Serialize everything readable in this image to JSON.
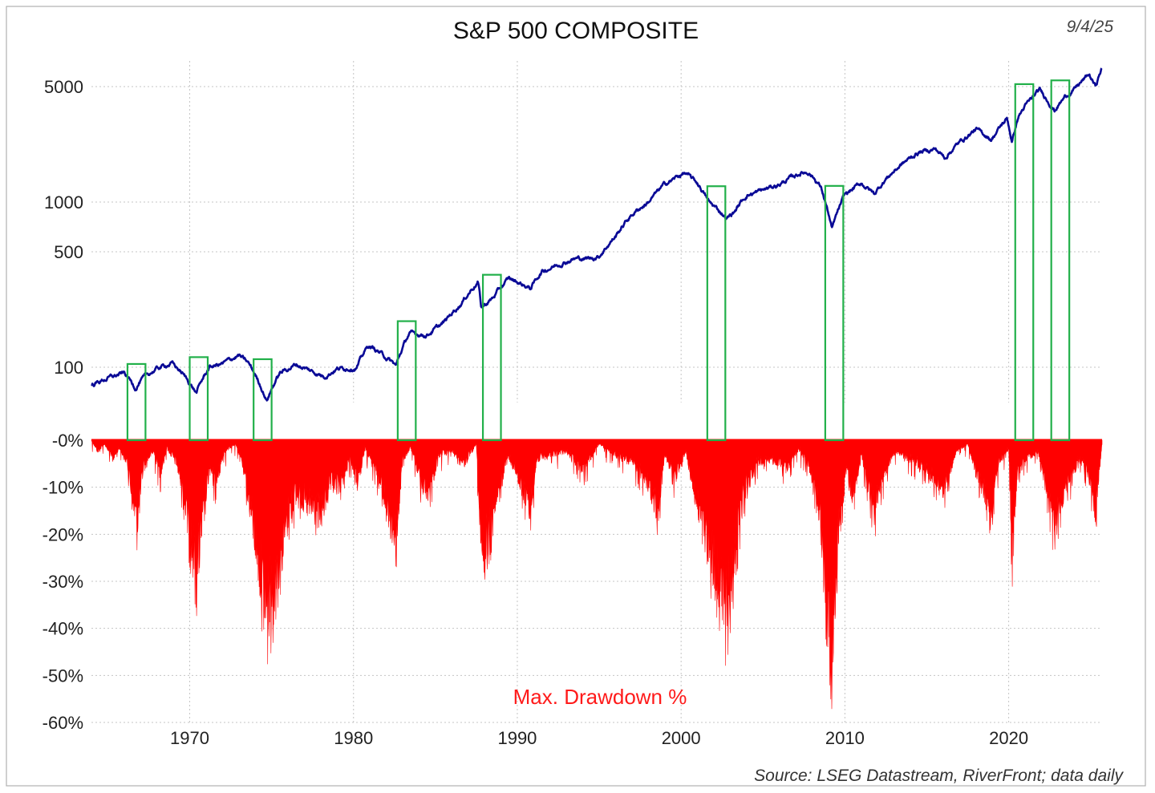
{
  "chart_data": {
    "type": "line",
    "title": "S&P 500 COMPOSITE",
    "date": "9/4/25",
    "source": "Source: LSEG Datastream, RiverFront; data daily",
    "x_ticks": [
      "1970",
      "1980",
      "1990",
      "2000",
      "2010",
      "2020"
    ],
    "x_range": [
      1964.0,
      2025.7
    ],
    "price_axis": {
      "scale": "log",
      "ticks": [
        {
          "value": 100,
          "label": "100"
        },
        {
          "value": 500,
          "label": "500"
        },
        {
          "value": 1000,
          "label": "1000"
        },
        {
          "value": 5000,
          "label": "5000"
        }
      ]
    },
    "price_series": {
      "color": "#0a0a96",
      "points": [
        [
          1964.0,
          78
        ],
        [
          1965.0,
          86
        ],
        [
          1966.0,
          92
        ],
        [
          1966.7,
          75
        ],
        [
          1967.0,
          83
        ],
        [
          1968.0,
          98
        ],
        [
          1968.9,
          106
        ],
        [
          1969.5,
          93
        ],
        [
          1970.4,
          70
        ],
        [
          1971.2,
          100
        ],
        [
          1972.0,
          105
        ],
        [
          1973.0,
          118
        ],
        [
          1973.6,
          105
        ],
        [
          1974.7,
          63
        ],
        [
          1975.5,
          92
        ],
        [
          1976.5,
          104
        ],
        [
          1977.5,
          94
        ],
        [
          1978.2,
          88
        ],
        [
          1979.0,
          98
        ],
        [
          1980.2,
          100
        ],
        [
          1980.9,
          135
        ],
        [
          1981.5,
          125
        ],
        [
          1982.6,
          102
        ],
        [
          1983.4,
          160
        ],
        [
          1984.5,
          157
        ],
        [
          1985.5,
          185
        ],
        [
          1986.6,
          245
        ],
        [
          1987.6,
          330
        ],
        [
          1987.8,
          228
        ],
        [
          1988.5,
          262
        ],
        [
          1989.5,
          345
        ],
        [
          1990.8,
          300
        ],
        [
          1991.5,
          380
        ],
        [
          1992.5,
          420
        ],
        [
          1993.5,
          455
        ],
        [
          1994.5,
          455
        ],
        [
          1995.0,
          470
        ],
        [
          1996.0,
          620
        ],
        [
          1997.0,
          840
        ],
        [
          1998.0,
          1000
        ],
        [
          1999.0,
          1280
        ],
        [
          2000.2,
          1500
        ],
        [
          2001.0,
          1300
        ],
        [
          2001.7,
          1000
        ],
        [
          2002.8,
          800
        ],
        [
          2003.2,
          860
        ],
        [
          2004.0,
          1100
        ],
        [
          2005.0,
          1180
        ],
        [
          2006.0,
          1280
        ],
        [
          2007.3,
          1500
        ],
        [
          2007.8,
          1520
        ],
        [
          2008.5,
          1250
        ],
        [
          2009.2,
          680
        ],
        [
          2010.0,
          1100
        ],
        [
          2011.0,
          1300
        ],
        [
          2011.8,
          1120
        ],
        [
          2012.5,
          1380
        ],
        [
          2013.5,
          1700
        ],
        [
          2014.5,
          2000
        ],
        [
          2015.5,
          2100
        ],
        [
          2016.1,
          1860
        ],
        [
          2017.0,
          2300
        ],
        [
          2018.0,
          2750
        ],
        [
          2018.95,
          2400
        ],
        [
          2019.9,
          3200
        ],
        [
          2020.2,
          2300
        ],
        [
          2020.6,
          3300
        ],
        [
          2021.0,
          3800
        ],
        [
          2021.9,
          4750
        ],
        [
          2022.8,
          3600
        ],
        [
          2023.5,
          4400
        ],
        [
          2024.0,
          4800
        ],
        [
          2024.9,
          5900
        ],
        [
          2025.3,
          5000
        ],
        [
          2025.7,
          6500
        ]
      ]
    },
    "drawdown_axis": {
      "ticks": [
        {
          "value": 0,
          "label": "-0%"
        },
        {
          "value": -10,
          "label": "-10%"
        },
        {
          "value": -20,
          "label": "-20%"
        },
        {
          "value": -30,
          "label": "-30%"
        },
        {
          "value": -40,
          "label": "-40%"
        },
        {
          "value": -50,
          "label": "-50%"
        },
        {
          "value": -60,
          "label": "-60%"
        }
      ]
    },
    "drawdown_series": {
      "label": "Max. Drawdown %",
      "color": "#ff0000",
      "points": [
        [
          1964.0,
          0
        ],
        [
          1964.4,
          -3
        ],
        [
          1964.8,
          -1
        ],
        [
          1965.3,
          -5
        ],
        [
          1965.7,
          -2
        ],
        [
          1966.2,
          -6
        ],
        [
          1966.5,
          -16
        ],
        [
          1966.8,
          -22
        ],
        [
          1967.2,
          -6
        ],
        [
          1967.8,
          -3
        ],
        [
          1968.2,
          -9
        ],
        [
          1968.6,
          -2
        ],
        [
          1969.2,
          -6
        ],
        [
          1969.6,
          -14
        ],
        [
          1970.0,
          -25
        ],
        [
          1970.4,
          -36
        ],
        [
          1970.8,
          -22
        ],
        [
          1971.2,
          -8
        ],
        [
          1971.6,
          -12
        ],
        [
          1972.1,
          -3
        ],
        [
          1972.8,
          -1
        ],
        [
          1973.2,
          -6
        ],
        [
          1973.7,
          -18
        ],
        [
          1974.2,
          -32
        ],
        [
          1974.7,
          -48
        ],
        [
          1975.1,
          -40
        ],
        [
          1975.6,
          -30
        ],
        [
          1976.0,
          -20
        ],
        [
          1976.6,
          -14
        ],
        [
          1977.3,
          -18
        ],
        [
          1978.0,
          -20
        ],
        [
          1978.6,
          -12
        ],
        [
          1979.2,
          -12
        ],
        [
          1979.8,
          -5
        ],
        [
          1980.3,
          -12
        ],
        [
          1980.7,
          -2
        ],
        [
          1981.4,
          -8
        ],
        [
          1982.0,
          -18
        ],
        [
          1982.6,
          -27
        ],
        [
          1983.0,
          -5
        ],
        [
          1983.5,
          -2
        ],
        [
          1984.2,
          -12
        ],
        [
          1984.6,
          -14
        ],
        [
          1985.2,
          -4
        ],
        [
          1986.0,
          -3
        ],
        [
          1986.8,
          -6
        ],
        [
          1987.5,
          -1
        ],
        [
          1987.8,
          -33
        ],
        [
          1988.2,
          -26
        ],
        [
          1988.8,
          -15
        ],
        [
          1989.4,
          -4
        ],
        [
          1989.9,
          -8
        ],
        [
          1990.8,
          -19
        ],
        [
          1991.2,
          -5
        ],
        [
          1992.0,
          -4
        ],
        [
          1993.0,
          -3
        ],
        [
          1994.0,
          -8
        ],
        [
          1995.0,
          -1
        ],
        [
          1996.0,
          -4
        ],
        [
          1997.0,
          -6
        ],
        [
          1997.8,
          -10
        ],
        [
          1998.6,
          -19
        ],
        [
          1999.0,
          -4
        ],
        [
          1999.6,
          -10
        ],
        [
          2000.3,
          -3
        ],
        [
          2001.0,
          -18
        ],
        [
          2001.7,
          -30
        ],
        [
          2002.2,
          -36
        ],
        [
          2002.8,
          -48
        ],
        [
          2003.2,
          -33
        ],
        [
          2003.8,
          -15
        ],
        [
          2004.6,
          -6
        ],
        [
          2005.3,
          -5
        ],
        [
          2006.5,
          -7
        ],
        [
          2007.2,
          -2
        ],
        [
          2007.9,
          -8
        ],
        [
          2008.5,
          -20
        ],
        [
          2008.9,
          -44
        ],
        [
          2009.2,
          -56
        ],
        [
          2009.6,
          -25
        ],
        [
          2010.1,
          -8
        ],
        [
          2010.5,
          -15
        ],
        [
          2011.0,
          -4
        ],
        [
          2011.8,
          -19
        ],
        [
          2012.4,
          -9
        ],
        [
          2013.0,
          -3
        ],
        [
          2014.0,
          -5
        ],
        [
          2014.8,
          -7
        ],
        [
          2015.7,
          -12
        ],
        [
          2016.1,
          -14
        ],
        [
          2016.8,
          -3
        ],
        [
          2017.5,
          -1
        ],
        [
          2018.1,
          -10
        ],
        [
          2018.95,
          -19
        ],
        [
          2019.4,
          -6
        ],
        [
          2020.0,
          -2
        ],
        [
          2020.2,
          -34
        ],
        [
          2020.5,
          -10
        ],
        [
          2021.0,
          -5
        ],
        [
          2021.8,
          -3
        ],
        [
          2022.3,
          -13
        ],
        [
          2022.8,
          -25
        ],
        [
          2023.2,
          -16
        ],
        [
          2023.8,
          -10
        ],
        [
          2024.3,
          -5
        ],
        [
          2024.8,
          -8
        ],
        [
          2025.3,
          -19
        ],
        [
          2025.7,
          -1
        ]
      ]
    },
    "highlight_boxes": {
      "color": "#22b04a",
      "ranges": [
        [
          1966.2,
          1967.3
        ],
        [
          1970.0,
          1971.1
        ],
        [
          1973.9,
          1975.0
        ],
        [
          1982.7,
          1983.8
        ],
        [
          1987.9,
          1989.0
        ],
        [
          2001.6,
          2002.7
        ],
        [
          2008.8,
          2009.9
        ],
        [
          2020.4,
          2021.5
        ],
        [
          2022.6,
          2023.7
        ]
      ]
    },
    "grid": true
  }
}
